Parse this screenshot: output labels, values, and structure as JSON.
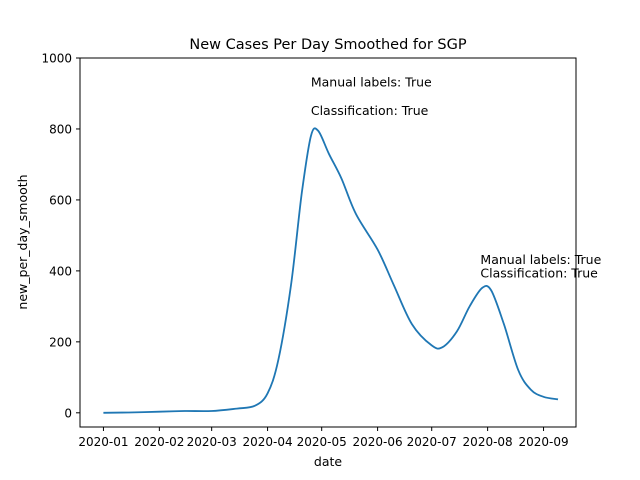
{
  "chart_data": {
    "type": "line",
    "title": "New Cases Per Day Smoothed for SGP",
    "xlabel": "date",
    "ylabel": "new_per_day_smooth",
    "xlim": [
      "2019-12-19",
      "2020-09-19"
    ],
    "ylim": [
      -40,
      1000
    ],
    "x_ticks": [
      "2020-01",
      "2020-02",
      "2020-03",
      "2020-04",
      "2020-05",
      "2020-06",
      "2020-07",
      "2020-08",
      "2020-09"
    ],
    "y_ticks": [
      0,
      200,
      400,
      600,
      800,
      1000
    ],
    "grid": false,
    "color": "#1f77b4",
    "series": [
      {
        "x": [
          "2020-01-01",
          "2020-01-15",
          "2020-02-01",
          "2020-02-15",
          "2020-03-01",
          "2020-03-15",
          "2020-03-25",
          "2020-04-01",
          "2020-04-07",
          "2020-04-14",
          "2020-04-20",
          "2020-04-25",
          "2020-04-29",
          "2020-05-05",
          "2020-05-12",
          "2020-05-20",
          "2020-06-01",
          "2020-06-10",
          "2020-06-20",
          "2020-07-01",
          "2020-07-07",
          "2020-07-15",
          "2020-07-22",
          "2020-07-29",
          "2020-08-03",
          "2020-08-10",
          "2020-08-18",
          "2020-08-25",
          "2020-09-01",
          "2020-09-09"
        ],
        "y": [
          0,
          1,
          3,
          5,
          5,
          12,
          20,
          55,
          150,
          360,
          620,
          780,
          795,
          730,
          660,
          560,
          460,
          360,
          250,
          190,
          185,
          230,
          300,
          352,
          345,
          250,
          120,
          65,
          45,
          38
        ]
      }
    ],
    "annotations": [
      {
        "lines": [
          "Manual labels: True",
          "Classification: True"
        ],
        "x": "2020-04-25",
        "y": [
          920,
          840
        ]
      },
      {
        "lines": [
          "Manual labels: True",
          "Classification: True"
        ],
        "x": "2020-07-28",
        "y": [
          420,
          382
        ]
      }
    ]
  }
}
